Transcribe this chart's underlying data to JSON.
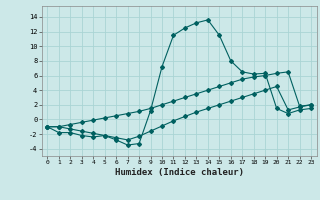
{
  "xlabel": "Humidex (Indice chaleur)",
  "xlim": [
    -0.5,
    23.5
  ],
  "ylim": [
    -5,
    15.5
  ],
  "yticks": [
    -4,
    -2,
    0,
    2,
    4,
    6,
    8,
    10,
    12,
    14
  ],
  "xticks": [
    0,
    1,
    2,
    3,
    4,
    5,
    6,
    7,
    8,
    9,
    10,
    11,
    12,
    13,
    14,
    15,
    16,
    17,
    18,
    19,
    20,
    21,
    22,
    23
  ],
  "bg_color": "#cce8e8",
  "grid_color": "#aad4d4",
  "line_color": "#006060",
  "line1_x": [
    0,
    1,
    2,
    3,
    4,
    5,
    6,
    7,
    8,
    9,
    10,
    11,
    12,
    13,
    14,
    15,
    16,
    17,
    18,
    19,
    20,
    21,
    22,
    23
  ],
  "line1_y": [
    -1,
    -1.8,
    -1.8,
    -2.2,
    -2.4,
    -2.2,
    -2.8,
    -3.5,
    -3.3,
    1.2,
    7.2,
    11.5,
    12.5,
    13.2,
    13.6,
    11.5,
    8.0,
    6.5,
    6.2,
    6.3,
    1.5,
    0.8,
    1.3,
    1.5
  ],
  "line2_x": [
    0,
    1,
    2,
    3,
    4,
    5,
    6,
    7,
    8,
    9,
    10,
    11,
    12,
    13,
    14,
    15,
    16,
    17,
    18,
    19,
    20,
    21,
    22,
    23
  ],
  "line2_y": [
    -1,
    -1.0,
    -0.7,
    -0.4,
    -0.1,
    0.2,
    0.5,
    0.8,
    1.1,
    1.5,
    2.0,
    2.5,
    3.0,
    3.5,
    4.0,
    4.5,
    5.0,
    5.5,
    5.8,
    6.0,
    6.3,
    6.5,
    1.8,
    2.0
  ],
  "line3_x": [
    0,
    1,
    2,
    3,
    4,
    5,
    6,
    7,
    8,
    9,
    10,
    11,
    12,
    13,
    14,
    15,
    16,
    17,
    18,
    19,
    20,
    21,
    22,
    23
  ],
  "line3_y": [
    -1,
    -1.0,
    -1.3,
    -1.6,
    -1.9,
    -2.2,
    -2.5,
    -2.8,
    -2.3,
    -1.6,
    -0.9,
    -0.2,
    0.4,
    1.0,
    1.5,
    2.0,
    2.5,
    3.0,
    3.5,
    4.0,
    4.5,
    1.3,
    1.7,
    2.0
  ],
  "marker": "D",
  "markersize": 2.0,
  "lw": 0.8
}
